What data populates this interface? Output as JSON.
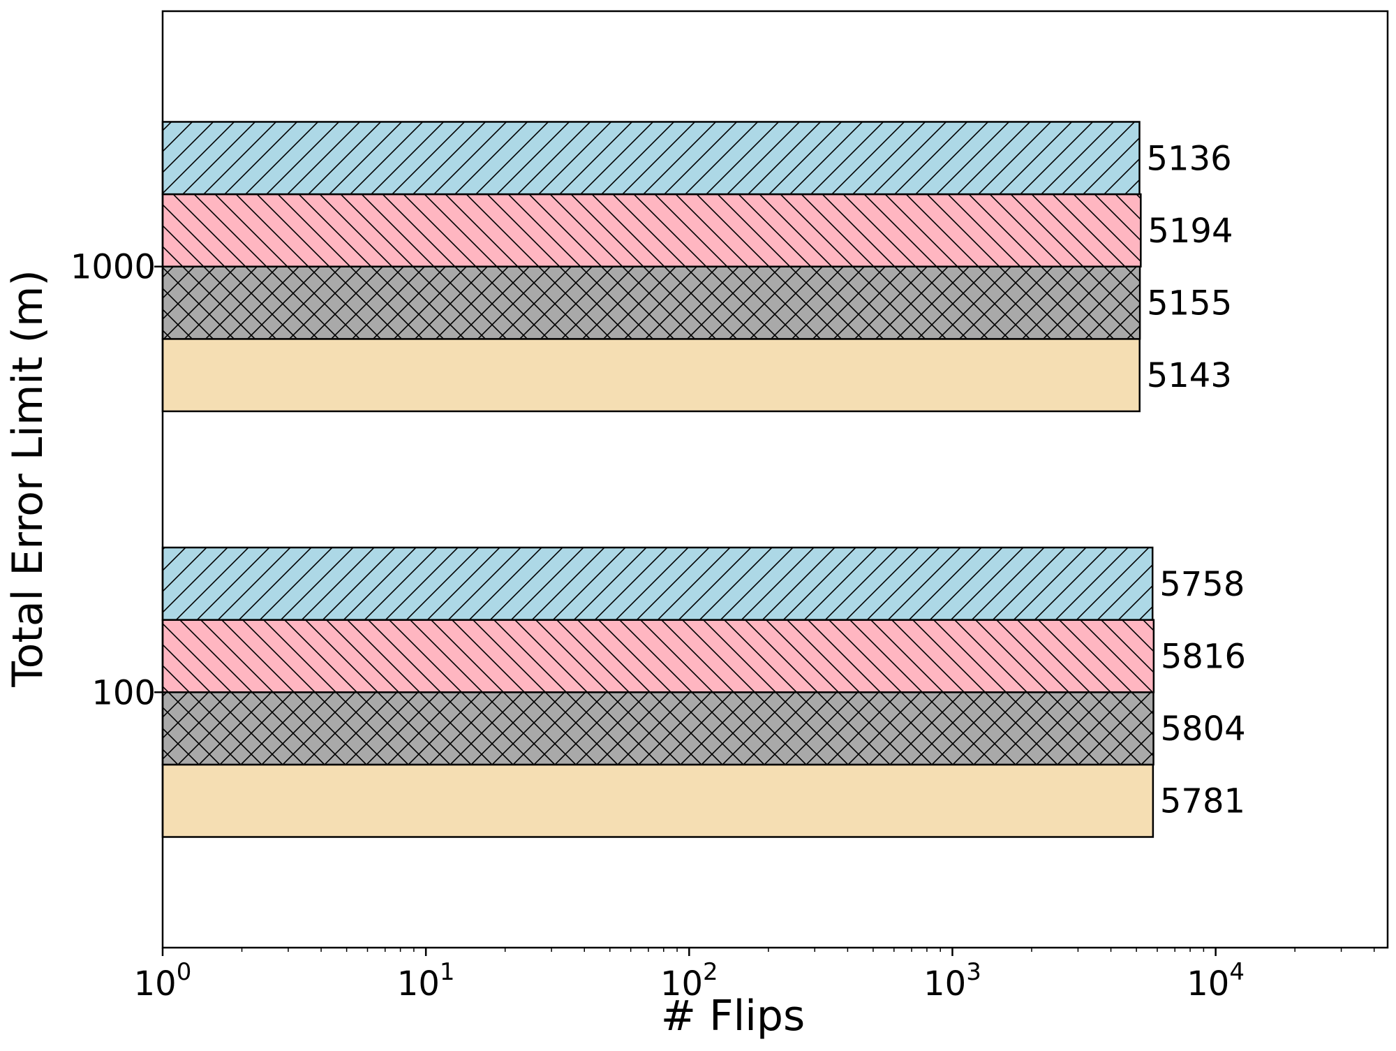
{
  "chart_data": {
    "type": "bar",
    "orientation": "horizontal",
    "xscale": "log",
    "xlabel": "# Flips",
    "ylabel": "Total Error Limit (m)",
    "xlim": [
      1,
      45000
    ],
    "xticks": [
      {
        "value": 1,
        "base": "10",
        "exp": "0"
      },
      {
        "value": 10,
        "base": "10",
        "exp": "1"
      },
      {
        "value": 100,
        "base": "10",
        "exp": "2"
      },
      {
        "value": 1000,
        "base": "10",
        "exp": "3"
      },
      {
        "value": 10000,
        "base": "10",
        "exp": "4"
      }
    ],
    "categories": [
      "100",
      "1000"
    ],
    "series": [
      {
        "values": [
          5781,
          5143
        ],
        "color": "#F5DEB3",
        "hatch": "none"
      },
      {
        "values": [
          5804,
          5155
        ],
        "color": "#A9A9A9",
        "hatch": "cross"
      },
      {
        "values": [
          5816,
          5194
        ],
        "color": "#FFB6C1",
        "hatch": "backslash"
      },
      {
        "values": [
          5758,
          5136
        ],
        "color": "#ADD8E6",
        "hatch": "slash"
      }
    ],
    "grid": false,
    "legend": false
  }
}
